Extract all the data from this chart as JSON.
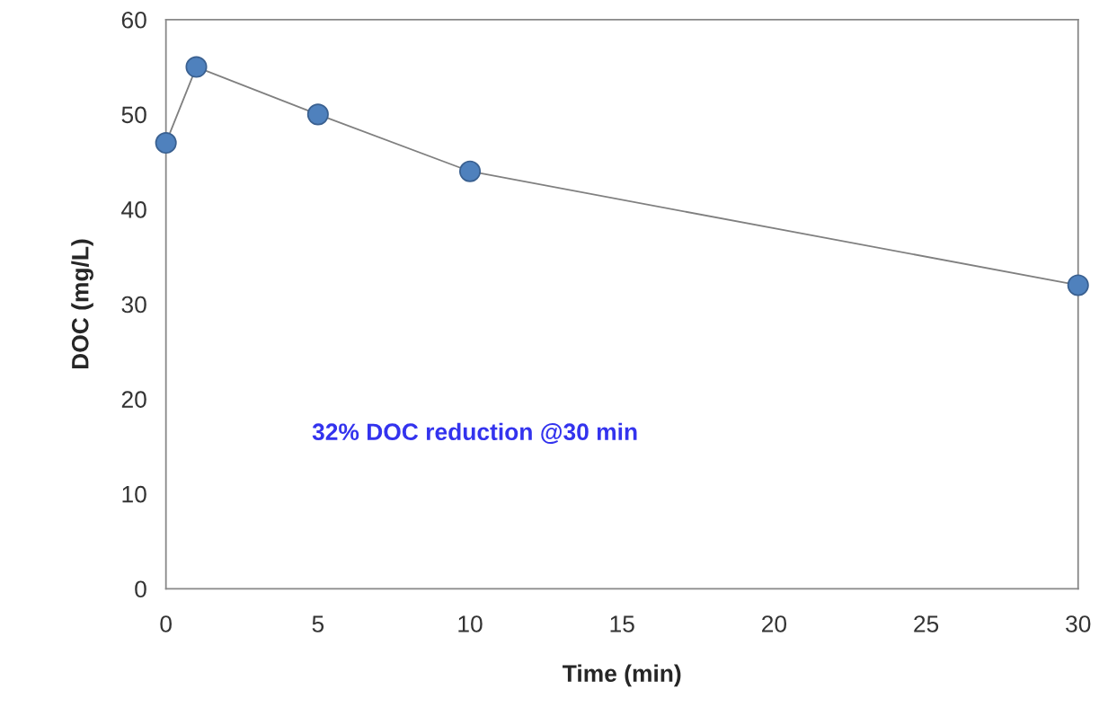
{
  "chart_data": {
    "type": "line",
    "xlabel": "Time (min)",
    "ylabel": "DOC (mg/L)",
    "x": [
      0,
      1,
      5,
      10,
      30
    ],
    "series": [
      {
        "color": "#4f81bd",
        "values": [
          47,
          55,
          50,
          44,
          32
        ]
      }
    ],
    "marker": "circle",
    "line_style": "solid",
    "grid": false,
    "legend": false,
    "xlim": [
      0,
      30
    ],
    "xticks": [
      0,
      5,
      10,
      15,
      20,
      25,
      30
    ],
    "ylim": [
      0,
      60
    ],
    "yticks": [
      0,
      10,
      20,
      30,
      40,
      50,
      60
    ],
    "annotations": [
      "32% DOC reduction @30 min"
    ]
  }
}
